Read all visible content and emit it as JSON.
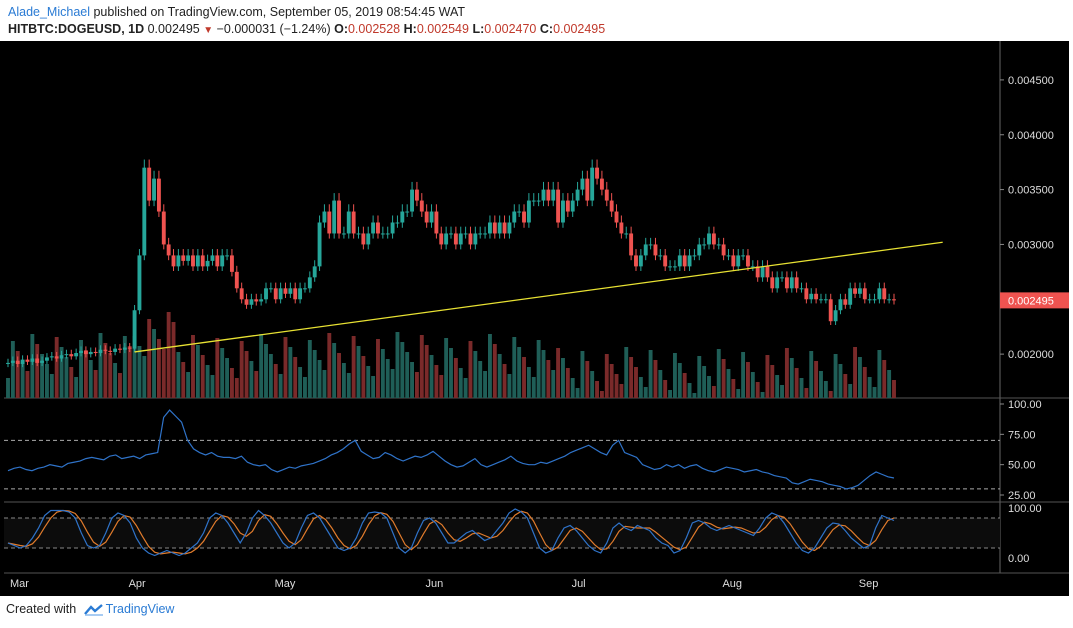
{
  "header": {
    "author": "Alade_Michael",
    "published_text": "published on TradingView.com, September 05, 2019 08:54:45 WAT",
    "symbol": "HITBTC:DOGEUSD, 1D",
    "last": "0.002495",
    "change": "−0.000031 (−1.24%)",
    "o_label": "O:",
    "o_value": "0.002528",
    "h_label": "H:",
    "h_value": "0.002549",
    "l_label": "L:",
    "l_value": "0.002470",
    "c_label": "C:",
    "c_value": "0.002495"
  },
  "footer": {
    "created_with": "Created with",
    "brand": "TradingView"
  },
  "colors": {
    "background": "#000000",
    "up": "#26a69a",
    "down": "#ef5350",
    "volume_up": "#1f5e57",
    "volume_down": "#7a2a2a",
    "trendline": "#e8e233",
    "rsi": "#2f73c9",
    "stoch_k": "#2f73c9",
    "stoch_d": "#e07b2c",
    "price_tag": "#ef5350"
  },
  "chart_data": {
    "type": "candlestick",
    "x_labels": [
      "Mar",
      "Apr",
      "May",
      "Jun",
      "Jul",
      "Aug",
      "Sep"
    ],
    "price_axis": {
      "ticks": [
        "0.004500",
        "0.004000",
        "0.003500",
        "0.003000",
        "0.002000"
      ],
      "tick_values": [
        0.0045,
        0.004,
        0.0035,
        0.003,
        0.002
      ],
      "range": [
        0.0016,
        0.0048
      ],
      "current_price_tag": "0.002495"
    },
    "price_series": [
      [
        0.00192,
        0.00194,
        0.00191,
        0.00195,
        0.00193,
        0.00196,
        0.00192,
        0.00194,
        0.00197,
        0.00198,
        0.00196,
        0.00199,
        0.002,
        0.00198,
        0.00201,
        0.00203,
        0.002,
        0.00202,
        0.00201,
        0.00204,
        0.00203,
        0.00202,
        0.00205,
        0.00204,
        0.00206,
        0.00205
      ],
      [
        0.0024,
        0.0029,
        0.0037,
        0.0034,
        0.0036,
        0.0033,
        0.003,
        0.0029,
        0.0028,
        0.0029,
        0.00285,
        0.0029,
        0.0028,
        0.0029,
        0.0028,
        0.00285,
        0.0029,
        0.0028,
        0.0029,
        0.0029,
        0.00275,
        0.0026,
        0.0025,
        0.00245,
        0.0025,
        0.00248,
        0.0025,
        0.0026,
        0.0026,
        0.0025
      ],
      [
        0.0026,
        0.00255,
        0.0026,
        0.0025,
        0.0026,
        0.0026,
        0.0027,
        0.0028,
        0.0032,
        0.0033,
        0.0031,
        0.0034,
        0.0031,
        0.0031,
        0.0033,
        0.0031,
        0.0031,
        0.003,
        0.0031,
        0.0032,
        0.0031,
        0.0031,
        0.0031,
        0.0032,
        0.0032,
        0.0033,
        0.0033,
        0.0035,
        0.0034,
        0.0033,
        0.0032
      ],
      [
        0.0033,
        0.0031,
        0.003,
        0.0031,
        0.0031,
        0.003,
        0.0031,
        0.0031,
        0.003,
        0.0031,
        0.0031,
        0.0031,
        0.0032,
        0.0031,
        0.0032,
        0.0031,
        0.0032,
        0.0033,
        0.0033,
        0.0032,
        0.0034,
        0.0034,
        0.0034,
        0.0035,
        0.0034,
        0.0035,
        0.0032,
        0.0034,
        0.0033,
        0.0034
      ],
      [
        0.0035,
        0.0036,
        0.0034,
        0.0037,
        0.0036,
        0.0035,
        0.0034,
        0.0033,
        0.0032,
        0.0031,
        0.0031,
        0.0029,
        0.0028,
        0.0029,
        0.003,
        0.003,
        0.0029,
        0.0029,
        0.0028,
        0.0028,
        0.0028,
        0.0029,
        0.0028,
        0.0029,
        0.0029,
        0.003,
        0.003,
        0.0031,
        0.003,
        0.003,
        0.0029
      ],
      [
        0.0029,
        0.0028,
        0.0029,
        0.0029,
        0.0028,
        0.0028,
        0.0027,
        0.0028,
        0.0027,
        0.0026,
        0.0027,
        0.0027,
        0.0026,
        0.0027,
        0.0026,
        0.0026,
        0.0025,
        0.00255,
        0.0025,
        0.0025,
        0.0025,
        0.0023,
        0.0024,
        0.0025,
        0.00245,
        0.0026,
        0.00255,
        0.0026,
        0.0025,
        0.0025
      ],
      [
        0.0025,
        0.0026,
        0.0025,
        0.0025,
        0.00249
      ]
    ],
    "trendline": {
      "from": {
        "x_label": "Apr",
        "price": 0.00202
      },
      "to": {
        "x_label": "Sep",
        "price": 0.00302
      }
    },
    "rsi_panel": {
      "ticks": [
        "100.00",
        "75.00",
        "50.00",
        "25.00"
      ],
      "tick_values": [
        100,
        75,
        50,
        25
      ],
      "levels": [
        70,
        30
      ],
      "values": [
        45,
        47,
        48,
        46,
        45,
        47,
        48,
        50,
        49,
        48,
        51,
        52,
        53,
        55,
        56,
        55,
        54,
        57,
        58,
        55,
        56,
        57,
        55,
        58,
        59,
        60,
        89,
        95,
        90,
        85,
        70,
        63,
        60,
        58,
        60,
        57,
        56,
        56,
        55,
        57,
        52,
        50,
        49,
        50,
        46,
        44,
        46,
        48,
        47,
        49,
        50,
        51,
        53,
        55,
        58,
        60,
        63,
        67,
        70,
        61,
        58,
        55,
        56,
        60,
        58,
        55,
        53,
        55,
        57,
        56,
        58,
        61,
        57,
        53,
        50,
        48,
        49,
        52,
        55,
        50,
        48,
        50,
        52,
        54,
        57,
        53,
        51,
        50,
        50,
        52,
        51,
        53,
        55,
        57,
        60,
        62,
        64,
        66,
        63,
        60,
        58,
        66,
        70,
        60,
        58,
        56,
        50,
        48,
        46,
        47,
        50,
        48,
        50,
        47,
        49,
        50,
        47,
        45,
        44,
        46,
        48,
        47,
        46,
        44,
        45,
        46,
        44,
        43,
        41,
        40,
        39,
        35,
        34,
        36,
        38,
        37,
        36,
        34,
        33,
        32,
        30,
        31,
        33,
        37,
        41,
        44,
        42,
        40,
        39
      ]
    },
    "stoch_panel": {
      "ticks": [
        "100.00",
        "0.00"
      ],
      "tick_values": [
        100,
        0
      ],
      "levels": [
        80,
        20
      ],
      "k_values": [
        30,
        25,
        20,
        25,
        40,
        60,
        85,
        95,
        95,
        95,
        92,
        80,
        50,
        25,
        20,
        25,
        50,
        80,
        90,
        85,
        70,
        40,
        20,
        10,
        5,
        10,
        15,
        10,
        5,
        10,
        20,
        30,
        50,
        80,
        90,
        85,
        70,
        50,
        30,
        50,
        80,
        95,
        85,
        70,
        50,
        30,
        20,
        30,
        60,
        85,
        90,
        80,
        60,
        40,
        20,
        15,
        20,
        40,
        70,
        90,
        92,
        90,
        80,
        50,
        20,
        10,
        20,
        50,
        75,
        80,
        70,
        50,
        30,
        30,
        40,
        50,
        55,
        45,
        35,
        40,
        55,
        70,
        90,
        98,
        92,
        80,
        50,
        20,
        10,
        15,
        40,
        60,
        65,
        55,
        40,
        25,
        15,
        10,
        30,
        60,
        70,
        60,
        55,
        65,
        60,
        55,
        40,
        30,
        25,
        10,
        15,
        40,
        70,
        75,
        70,
        60,
        55,
        60,
        65,
        60,
        55,
        50,
        45,
        60,
        80,
        90,
        85,
        70,
        50,
        30,
        15,
        10,
        20,
        40,
        60,
        70,
        68,
        55,
        40,
        30,
        20,
        25,
        60,
        85,
        80,
        75
      ]
    }
  }
}
